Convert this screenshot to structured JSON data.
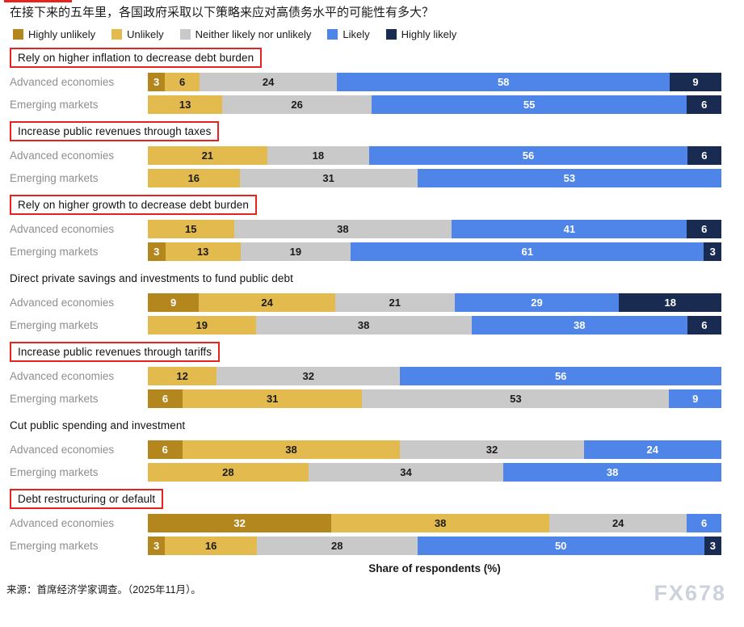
{
  "page": {
    "watermark": "FX678",
    "source": "来源：首席经济学家调查。（2025年11月）。"
  },
  "chart_data": {
    "type": "bar",
    "orientation": "horizontal",
    "stacked": true,
    "unit": "percent_of_respondents",
    "title": "在接下来的五年里，各国政府采取以下策略来应对高债务水平的可能性有多大？",
    "xlabel": "Share of respondents (%)",
    "legend_position": "top",
    "highlight_box_color": "#e8231d",
    "categories": [
      {
        "key": "highly_unlikely",
        "label": "Highly unlikely",
        "color": "#b3861e",
        "text_color": "#ffffff"
      },
      {
        "key": "unlikely",
        "label": "Unlikely",
        "color": "#e3ba4e",
        "text_color": "#1a1a1a"
      },
      {
        "key": "neither",
        "label": "Neither likely nor unlikely",
        "color": "#c9c9c9",
        "text_color": "#1a1a1a"
      },
      {
        "key": "likely",
        "label": "Likely",
        "color": "#4f84e8",
        "text_color": "#ffffff"
      },
      {
        "key": "highly_likely",
        "label": "Highly likely",
        "color": "#1a2b52",
        "text_color": "#ffffff"
      }
    ],
    "groups": [
      {
        "title": "Rely on higher inflation to decrease debt burden",
        "highlighted": true,
        "rows": [
          {
            "label": "Advanced economies",
            "segments": [
              {
                "category": "highly_unlikely",
                "value": 3
              },
              {
                "category": "unlikely",
                "value": 6
              },
              {
                "category": "neither",
                "value": 24
              },
              {
                "category": "likely",
                "value": 58
              },
              {
                "category": "highly_likely",
                "value": 9
              }
            ]
          },
          {
            "label": "Emerging markets",
            "segments": [
              {
                "category": "unlikely",
                "value": 13
              },
              {
                "category": "neither",
                "value": 26
              },
              {
                "category": "likely",
                "value": 55
              },
              {
                "category": "highly_likely",
                "value": 6
              }
            ]
          }
        ]
      },
      {
        "title": "Increase public revenues through taxes",
        "highlighted": true,
        "rows": [
          {
            "label": "Advanced economies",
            "segments": [
              {
                "category": "unlikely",
                "value": 21
              },
              {
                "category": "neither",
                "value": 18
              },
              {
                "category": "likely",
                "value": 56
              },
              {
                "category": "highly_likely",
                "value": 6
              }
            ]
          },
          {
            "label": "Emerging markets",
            "segments": [
              {
                "category": "unlikely",
                "value": 16
              },
              {
                "category": "neither",
                "value": 31
              },
              {
                "category": "likely",
                "value": 53
              }
            ]
          }
        ]
      },
      {
        "title": "Rely on higher growth to decrease debt burden",
        "highlighted": true,
        "rows": [
          {
            "label": "Advanced economies",
            "segments": [
              {
                "category": "unlikely",
                "value": 15
              },
              {
                "category": "neither",
                "value": 38
              },
              {
                "category": "likely",
                "value": 41
              },
              {
                "category": "highly_likely",
                "value": 6
              }
            ]
          },
          {
            "label": "Emerging markets",
            "segments": [
              {
                "category": "highly_unlikely",
                "value": 3
              },
              {
                "category": "unlikely",
                "value": 13
              },
              {
                "category": "neither",
                "value": 19
              },
              {
                "category": "likely",
                "value": 61
              },
              {
                "category": "highly_likely",
                "value": 3
              }
            ]
          }
        ]
      },
      {
        "title": "Direct private savings and investments to fund public debt",
        "highlighted": false,
        "rows": [
          {
            "label": "Advanced economies",
            "segments": [
              {
                "category": "highly_unlikely",
                "value": 9
              },
              {
                "category": "unlikely",
                "value": 24
              },
              {
                "category": "neither",
                "value": 21
              },
              {
                "category": "likely",
                "value": 29
              },
              {
                "category": "highly_likely",
                "value": 18
              }
            ]
          },
          {
            "label": "Emerging markets",
            "segments": [
              {
                "category": "unlikely",
                "value": 19
              },
              {
                "category": "neither",
                "value": 38
              },
              {
                "category": "likely",
                "value": 38
              },
              {
                "category": "highly_likely",
                "value": 6
              }
            ]
          }
        ]
      },
      {
        "title": "Increase public revenues through tariffs",
        "highlighted": true,
        "rows": [
          {
            "label": "Advanced economies",
            "segments": [
              {
                "category": "unlikely",
                "value": 12
              },
              {
                "category": "neither",
                "value": 32
              },
              {
                "category": "likely",
                "value": 56
              }
            ]
          },
          {
            "label": "Emerging markets",
            "segments": [
              {
                "category": "highly_unlikely",
                "value": 6
              },
              {
                "category": "unlikely",
                "value": 31
              },
              {
                "category": "neither",
                "value": 53
              },
              {
                "category": "likely",
                "value": 9
              }
            ]
          }
        ]
      },
      {
        "title": "Cut public spending and investment",
        "highlighted": false,
        "rows": [
          {
            "label": "Advanced economies",
            "segments": [
              {
                "category": "highly_unlikely",
                "value": 6
              },
              {
                "category": "unlikely",
                "value": 38
              },
              {
                "category": "neither",
                "value": 32
              },
              {
                "category": "likely",
                "value": 24
              }
            ]
          },
          {
            "label": "Emerging markets",
            "segments": [
              {
                "category": "unlikely",
                "value": 28
              },
              {
                "category": "neither",
                "value": 34
              },
              {
                "category": "likely",
                "value": 38
              }
            ]
          }
        ]
      },
      {
        "title": "Debt restructuring or default",
        "highlighted": true,
        "rows": [
          {
            "label": "Advanced economies",
            "segments": [
              {
                "category": "highly_unlikely",
                "value": 32
              },
              {
                "category": "unlikely",
                "value": 38
              },
              {
                "category": "neither",
                "value": 24
              },
              {
                "category": "likely",
                "value": 6
              }
            ]
          },
          {
            "label": "Emerging markets",
            "segments": [
              {
                "category": "highly_unlikely",
                "value": 3
              },
              {
                "category": "unlikely",
                "value": 16
              },
              {
                "category": "neither",
                "value": 28
              },
              {
                "category": "likely",
                "value": 50
              },
              {
                "category": "highly_likely",
                "value": 3
              }
            ]
          }
        ]
      }
    ]
  }
}
